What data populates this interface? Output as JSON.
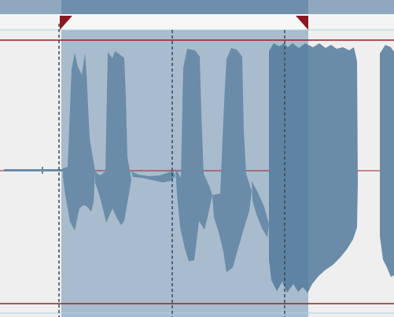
{
  "editor": {
    "colors": {
      "canvas_background": "#efefef",
      "selection_fill": "#a8bccd",
      "waveform": "#6a8ca8",
      "waveform_dark": "#5f84a3",
      "ruler_background": "#8fa8bf",
      "ruler_selected": "#6d8ead",
      "clip_boundary_line": "#9b1e26",
      "marker": "#8b1820",
      "guide_line": "#aad4e6",
      "cursor_line": "#3a4756"
    },
    "icons": {
      "selection_start_marker": "triangle-marker-icon",
      "selection_end_marker": "triangle-marker-icon"
    }
  }
}
